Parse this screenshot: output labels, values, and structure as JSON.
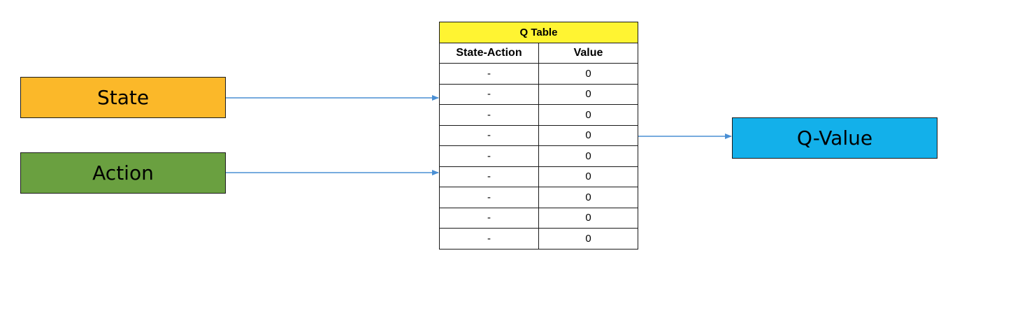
{
  "colors": {
    "state": "#fbb829",
    "action": "#6aa040",
    "q_value": "#13b0ea",
    "table_title": "#fff432",
    "arrow": "#4a8fd4"
  },
  "inputs": {
    "state_label": "State",
    "action_label": "Action"
  },
  "output": {
    "q_value_label": "Q-Value"
  },
  "q_table": {
    "title": "Q Table",
    "headers": [
      "State-Action",
      "Value"
    ],
    "rows": [
      [
        "-",
        "0"
      ],
      [
        "-",
        "0"
      ],
      [
        "-",
        "0"
      ],
      [
        "-",
        "0"
      ],
      [
        "-",
        "0"
      ],
      [
        "-",
        "0"
      ],
      [
        "-",
        "0"
      ],
      [
        "-",
        "0"
      ],
      [
        "-",
        "0"
      ]
    ]
  }
}
